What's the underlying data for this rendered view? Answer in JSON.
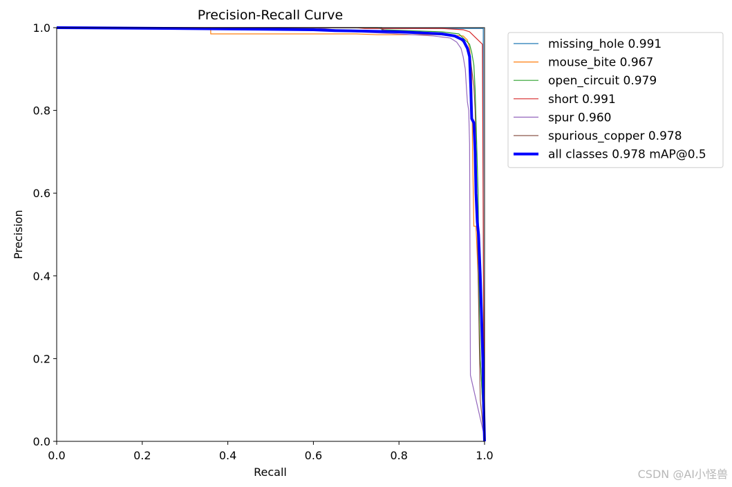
{
  "chart_data": {
    "type": "line",
    "title": "Precision-Recall Curve",
    "xlabel": "Recall",
    "ylabel": "Precision",
    "xlim": [
      0,
      1
    ],
    "ylim": [
      0,
      1
    ],
    "xticks": [
      "0.0",
      "0.2",
      "0.4",
      "0.6",
      "0.8",
      "1.0"
    ],
    "yticks": [
      "0.0",
      "0.2",
      "0.4",
      "0.6",
      "0.8",
      "1.0"
    ],
    "grid": false,
    "legend_position": "outside-top-right",
    "series": [
      {
        "name": "missing_hole 0.991",
        "color": "#1f77b4",
        "width": 1.2,
        "points": [
          [
            0,
            1
          ],
          [
            0.76,
            1
          ],
          [
            0.76,
            0.998
          ],
          [
            0.97,
            0.998
          ],
          [
            0.99,
            0.998
          ],
          [
            0.997,
            0.998
          ],
          [
            0.997,
            0.6
          ],
          [
            0.998,
            0.1
          ],
          [
            0.999,
            0
          ],
          [
            1,
            0
          ]
        ]
      },
      {
        "name": "mouse_bite 0.967",
        "color": "#ff7f0e",
        "width": 1.2,
        "points": [
          [
            0,
            1
          ],
          [
            0.36,
            1
          ],
          [
            0.36,
            0.985
          ],
          [
            0.7,
            0.985
          ],
          [
            0.75,
            0.983
          ],
          [
            0.9,
            0.983
          ],
          [
            0.95,
            0.98
          ],
          [
            0.96,
            0.97
          ],
          [
            0.965,
            0.95
          ],
          [
            0.97,
            0.9
          ],
          [
            0.972,
            0.7
          ],
          [
            0.975,
            0.52
          ],
          [
            0.98,
            0.52
          ],
          [
            0.985,
            0.4
          ],
          [
            0.99,
            0.2
          ],
          [
            1,
            0
          ]
        ]
      },
      {
        "name": "open_circuit 0.979",
        "color": "#2ca02c",
        "width": 1.2,
        "points": [
          [
            0,
            1
          ],
          [
            0.76,
            1
          ],
          [
            0.76,
            0.995
          ],
          [
            0.9,
            0.99
          ],
          [
            0.94,
            0.985
          ],
          [
            0.955,
            0.97
          ],
          [
            0.965,
            0.96
          ],
          [
            0.97,
            0.94
          ],
          [
            0.975,
            0.91
          ],
          [
            0.978,
            0.85
          ],
          [
            0.98,
            0.78
          ],
          [
            0.985,
            0.6
          ],
          [
            0.988,
            0.3
          ],
          [
            0.99,
            0.2
          ],
          [
            1,
            0
          ]
        ]
      },
      {
        "name": "short 0.991",
        "color": "#d62728",
        "width": 1.2,
        "points": [
          [
            0,
            1
          ],
          [
            0.7,
            1
          ],
          [
            0.72,
            0.998
          ],
          [
            0.9,
            0.998
          ],
          [
            0.95,
            0.995
          ],
          [
            0.965,
            0.99
          ],
          [
            0.975,
            0.98
          ],
          [
            0.985,
            0.97
          ],
          [
            0.99,
            0.965
          ],
          [
            0.995,
            0.96
          ],
          [
            0.997,
            0.5
          ],
          [
            0.998,
            0.3
          ],
          [
            0.999,
            0
          ],
          [
            1,
            0
          ]
        ]
      },
      {
        "name": "spur 0.960",
        "color": "#9467bd",
        "width": 1.2,
        "points": [
          [
            0,
            1
          ],
          [
            0.6,
            1
          ],
          [
            0.7,
            0.99
          ],
          [
            0.8,
            0.985
          ],
          [
            0.88,
            0.98
          ],
          [
            0.92,
            0.975
          ],
          [
            0.935,
            0.965
          ],
          [
            0.945,
            0.95
          ],
          [
            0.95,
            0.93
          ],
          [
            0.955,
            0.9
          ],
          [
            0.958,
            0.85
          ],
          [
            0.96,
            0.82
          ],
          [
            0.963,
            0.8
          ],
          [
            0.965,
            0.72
          ],
          [
            0.967,
            0.16
          ],
          [
            1,
            0.01
          ]
        ]
      },
      {
        "name": "spurious_copper 0.978",
        "color": "#8c564b",
        "width": 1.2,
        "points": [
          [
            0,
            1
          ],
          [
            0.75,
            1
          ],
          [
            0.78,
            0.99
          ],
          [
            0.88,
            0.985
          ],
          [
            0.92,
            0.98
          ],
          [
            0.94,
            0.975
          ],
          [
            0.95,
            0.965
          ],
          [
            0.96,
            0.95
          ],
          [
            0.965,
            0.93
          ],
          [
            0.97,
            0.9
          ],
          [
            0.975,
            0.86
          ],
          [
            0.978,
            0.8
          ],
          [
            0.98,
            0.7
          ],
          [
            0.985,
            0.4
          ],
          [
            0.99,
            0.1
          ],
          [
            1,
            0
          ]
        ]
      },
      {
        "name": "all classes 0.978 mAP@0.5",
        "color": "#0000ff",
        "width": 4,
        "points": [
          [
            0,
            1
          ],
          [
            0.3,
            0.998
          ],
          [
            0.6,
            0.995
          ],
          [
            0.65,
            0.993
          ],
          [
            0.8,
            0.99
          ],
          [
            0.9,
            0.985
          ],
          [
            0.93,
            0.98
          ],
          [
            0.95,
            0.97
          ],
          [
            0.96,
            0.95
          ],
          [
            0.965,
            0.93
          ],
          [
            0.968,
            0.85
          ],
          [
            0.97,
            0.78
          ],
          [
            0.975,
            0.77
          ],
          [
            0.978,
            0.7
          ],
          [
            0.98,
            0.6
          ],
          [
            0.983,
            0.53
          ],
          [
            0.986,
            0.5
          ],
          [
            0.99,
            0.4
          ],
          [
            0.993,
            0.3
          ],
          [
            0.996,
            0.2
          ],
          [
            0.998,
            0.08
          ],
          [
            1,
            0
          ]
        ]
      }
    ]
  },
  "watermark": "CSDN @AI小怪兽"
}
